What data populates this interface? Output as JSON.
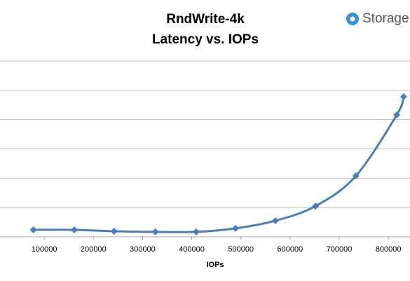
{
  "chart_data": {
    "type": "line",
    "title": "RndWrite-4k",
    "subtitle": "Latency vs. IOPs",
    "logo": "Storage",
    "x_label": "IOPs",
    "x": [
      78000,
      161000,
      242000,
      326000,
      409000,
      489000,
      570000,
      652000,
      734000,
      817000,
      831000
    ],
    "series": [
      {
        "color": "#4a7ebb",
        "values": [
          0.24,
          0.24,
          0.19,
          0.17,
          0.17,
          0.29,
          0.55,
          1.05,
          2.08,
          4.16,
          4.78
        ]
      }
    ],
    "xlim": [
      10000,
      844000
    ],
    "xticks": [
      100000,
      200000,
      300000,
      400000,
      500000,
      600000,
      700000,
      800000
    ],
    "ylim": [
      0,
      6
    ],
    "yticks": [
      1,
      2,
      3,
      4,
      5,
      6
    ],
    "grid": true
  }
}
